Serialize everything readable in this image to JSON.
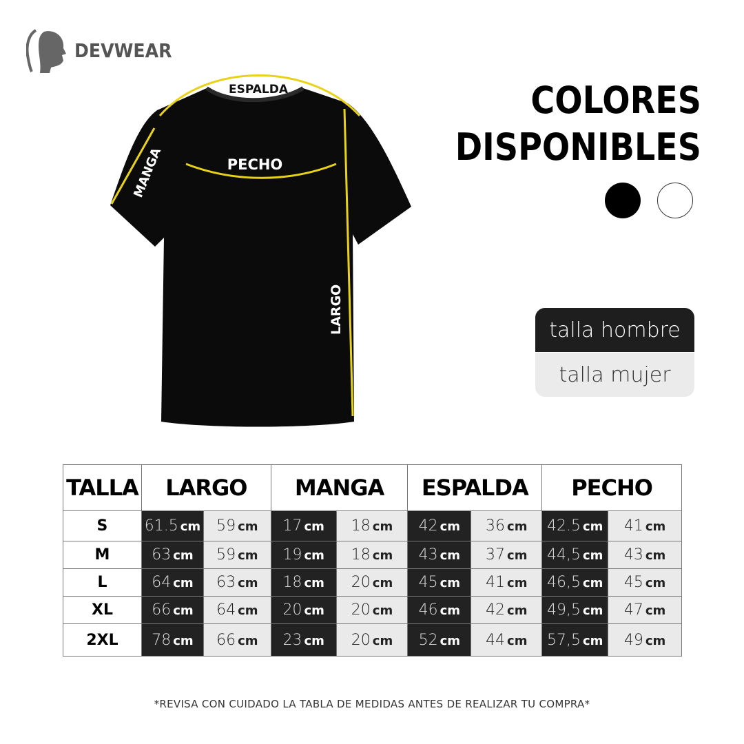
{
  "brand": {
    "name": "DEVWEAR",
    "logo_icon": "head-silhouette-icon"
  },
  "diagram_labels": {
    "espalda": "ESPALDA",
    "pecho": "PECHO",
    "manga": "MANGA",
    "largo": "LARGO"
  },
  "colors_section": {
    "title_line1": "COLORES",
    "title_line2": "DISPONIBLES",
    "swatches": [
      "#000000",
      "#ffffff"
    ]
  },
  "size_toggle": {
    "men": "talla hombre",
    "women": "talla mujer",
    "active": "men"
  },
  "table": {
    "headers": [
      "TALLA",
      "LARGO",
      "MANGA",
      "ESPALDA",
      "PECHO"
    ],
    "unit": "cm",
    "rows": [
      {
        "size": "S",
        "values": [
          "61.5",
          "59",
          "17",
          "18",
          "42",
          "36",
          "42.5",
          "41"
        ]
      },
      {
        "size": "M",
        "values": [
          "63",
          "59",
          "19",
          "18",
          "43",
          "37",
          "44,5",
          "43"
        ]
      },
      {
        "size": "L",
        "values": [
          "64",
          "63",
          "18",
          "20",
          "45",
          "41",
          "46,5",
          "45"
        ]
      },
      {
        "size": "XL",
        "values": [
          "66",
          "64",
          "20",
          "20",
          "46",
          "42",
          "49,5",
          "47"
        ]
      },
      {
        "size": "2XL",
        "values": [
          "78",
          "66",
          "23",
          "20",
          "52",
          "44",
          "57,5",
          "49"
        ]
      }
    ]
  },
  "footer_note": "*REVISA CON CUIDADO LA TABLA DE MEDIDAS ANTES DE REALIZAR TU COMPRA*",
  "accent_color": "#e8d21a"
}
